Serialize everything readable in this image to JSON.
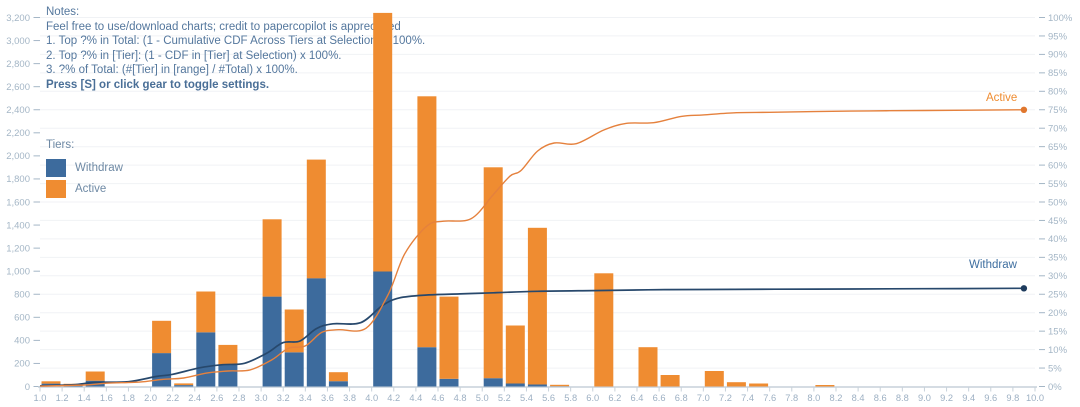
{
  "notes": {
    "title": "Notes:",
    "lines": [
      "Feel free to use/download charts; credit to papercopilot is appreciated",
      "1. Top ?% in Total: (1 - Cumulative CDF Across Tiers at Selection) x 100%.",
      "2. Top ?% in [Tier]: (1 - CDF in [Tier] at Selection) x 100%.",
      "3. ?% of Total: (#[Tier] in [range] / #Total) x 100%."
    ],
    "emphasis": "Press [S] or click gear to toggle settings."
  },
  "legend": {
    "title": "Tiers:",
    "items": [
      {
        "label": "Withdraw",
        "color": "#3d6b9d"
      },
      {
        "label": "Active",
        "color": "#ef8c31"
      }
    ]
  },
  "line_end_labels": {
    "active": "Active",
    "withdraw": "Withdraw"
  },
  "colors": {
    "bar_withdraw": "#3d6b9d",
    "bar_active": "#ef8c31",
    "line_withdraw": "#27486c",
    "line_active": "#e5813d",
    "dot_withdraw": "#1f3c5e",
    "dot_active": "#e0772e",
    "left_axis_label": "#a4b6c6",
    "right_axis_label": "#a4b6c6",
    "x_axis_label": "#9db0c3",
    "gridline": "#f0f2f5",
    "axis_line": "#c7d1da"
  },
  "chart_data": {
    "type": "bar",
    "subtype": "stacked-histogram-with-cumulative-percent-lines",
    "title": "",
    "xlabel": "",
    "ylabel_left": "count",
    "ylabel_right": "percent",
    "grid": true,
    "legend_position": "left",
    "x_axis": {
      "min": 1.0,
      "max": 10.0,
      "tick_step": 0.2,
      "bin_width": 0.2,
      "ticks": [
        "1.0",
        "1.2",
        "1.4",
        "1.6",
        "1.8",
        "2.0",
        "2.2",
        "2.4",
        "2.6",
        "2.8",
        "3.0",
        "3.2",
        "3.4",
        "3.6",
        "3.8",
        "4.0",
        "4.2",
        "4.4",
        "4.6",
        "4.8",
        "5.0",
        "5.2",
        "5.4",
        "5.6",
        "5.8",
        "6.0",
        "6.2",
        "6.4",
        "6.6",
        "6.8",
        "7.0",
        "7.2",
        "7.4",
        "7.6",
        "7.8",
        "8.0",
        "8.2",
        "8.4",
        "8.6",
        "8.8",
        "9.0",
        "9.2",
        "9.4",
        "9.6",
        "9.8",
        "10.0"
      ]
    },
    "left_axis": {
      "min": 0,
      "max": 3200,
      "tick_step": 200,
      "ticks": [
        "0",
        "200",
        "400",
        "600",
        "800",
        "1,000",
        "1,200",
        "1,400",
        "1,600",
        "1,800",
        "2,000",
        "2,200",
        "2,400",
        "2,600",
        "2,800",
        "3,000",
        "3,200"
      ]
    },
    "right_axis": {
      "min": 0,
      "max": 100,
      "tick_step": 5,
      "suffix": "%",
      "ticks": [
        "0%",
        "5%",
        "10%",
        "15%",
        "20%",
        "25%",
        "30%",
        "35%",
        "40%",
        "45%",
        "50%",
        "55%",
        "60%",
        "65%",
        "70%",
        "75%",
        "80%",
        "85%",
        "90%",
        "95%",
        "100%"
      ]
    },
    "categories": [
      1.0,
      1.2,
      1.4,
      1.6,
      1.8,
      2.0,
      2.2,
      2.4,
      2.6,
      2.8,
      3.0,
      3.2,
      3.4,
      3.6,
      3.8,
      4.0,
      4.2,
      4.4,
      4.6,
      4.8,
      5.0,
      5.2,
      5.4,
      5.6,
      5.8,
      6.0,
      6.2,
      6.4,
      6.6,
      6.8,
      7.0,
      7.2,
      7.4,
      7.6,
      7.8,
      8.0,
      8.2,
      8.4,
      8.6,
      8.8,
      9.0,
      9.2,
      9.4,
      9.6,
      9.8
    ],
    "series": [
      {
        "name": "Withdraw",
        "color": "#3d6b9d",
        "values": [
          25,
          13,
          50,
          0,
          0,
          290,
          12,
          470,
          190,
          0,
          780,
          297,
          939,
          46,
          0,
          997,
          0,
          341,
          67,
          0,
          72,
          26,
          17,
          3,
          0,
          0,
          0,
          0,
          0,
          0,
          0,
          0,
          0,
          0,
          0,
          0,
          0,
          0,
          0,
          0,
          0,
          0,
          0,
          0,
          0
        ]
      },
      {
        "name": "Active",
        "color": "#ef8c31",
        "values": [
          20,
          10,
          80,
          0,
          0,
          280,
          15,
          354,
          171,
          0,
          670,
          371,
          1029,
          78,
          0,
          2243,
          0,
          2176,
          713,
          0,
          1829,
          503,
          1359,
          12,
          0,
          982,
          0,
          341,
          100,
          0,
          134,
          37,
          26,
          0,
          0,
          13,
          0,
          0,
          0,
          0,
          0,
          0,
          0,
          0,
          0
        ]
      }
    ],
    "lines": [
      {
        "name": "Withdraw",
        "color": "#27486c",
        "dot_color": "#1f3c5e",
        "end_label": "Withdraw",
        "end_value_pct": 26.6,
        "points": [
          [
            1.0,
            0.2
          ],
          [
            1.3,
            0.5
          ],
          [
            1.5,
            1.1
          ],
          [
            1.8,
            1.3
          ],
          [
            2.05,
            2.7
          ],
          [
            2.2,
            3.3
          ],
          [
            2.45,
            5.1
          ],
          [
            2.65,
            5.9
          ],
          [
            2.85,
            6.3
          ],
          [
            3.05,
            9.0
          ],
          [
            3.2,
            11.9
          ],
          [
            3.35,
            12.3
          ],
          [
            3.5,
            15.7
          ],
          [
            3.65,
            17.0
          ],
          [
            3.9,
            17.3
          ],
          [
            4.1,
            22.0
          ],
          [
            4.25,
            24.0
          ],
          [
            4.5,
            24.8
          ],
          [
            4.8,
            25.1
          ],
          [
            5.1,
            25.4
          ],
          [
            5.5,
            25.8
          ],
          [
            6.0,
            26.0
          ],
          [
            6.5,
            26.2
          ],
          [
            7.0,
            26.3
          ],
          [
            8.0,
            26.4
          ],
          [
            9.0,
            26.5
          ],
          [
            9.9,
            26.6
          ]
        ]
      },
      {
        "name": "Active",
        "color": "#e5813d",
        "dot_color": "#e0772e",
        "end_label": "Active",
        "end_value_pct": 75.0,
        "points": [
          [
            1.0,
            0.1
          ],
          [
            1.4,
            0.4
          ],
          [
            1.6,
            0.9
          ],
          [
            1.9,
            1.2
          ],
          [
            2.1,
            1.9
          ],
          [
            2.3,
            2.3
          ],
          [
            2.5,
            3.6
          ],
          [
            2.7,
            4.2
          ],
          [
            2.9,
            4.5
          ],
          [
            3.1,
            7.3
          ],
          [
            3.25,
            10.4
          ],
          [
            3.4,
            11.0
          ],
          [
            3.55,
            14.7
          ],
          [
            3.7,
            15.4
          ],
          [
            3.95,
            15.8
          ],
          [
            4.15,
            25.0
          ],
          [
            4.3,
            36.0
          ],
          [
            4.5,
            43.5
          ],
          [
            4.65,
            44.8
          ],
          [
            4.9,
            45.5
          ],
          [
            5.1,
            52.0
          ],
          [
            5.25,
            57.0
          ],
          [
            5.35,
            58.5
          ],
          [
            5.5,
            63.8
          ],
          [
            5.65,
            66.0
          ],
          [
            5.85,
            65.8
          ],
          [
            6.1,
            69.5
          ],
          [
            6.3,
            71.3
          ],
          [
            6.55,
            71.5
          ],
          [
            6.8,
            73.2
          ],
          [
            7.0,
            73.6
          ],
          [
            7.3,
            74.2
          ],
          [
            7.6,
            74.3
          ],
          [
            8.0,
            74.5
          ],
          [
            8.5,
            74.7
          ],
          [
            9.0,
            74.8
          ],
          [
            9.9,
            75.0
          ]
        ]
      }
    ]
  }
}
